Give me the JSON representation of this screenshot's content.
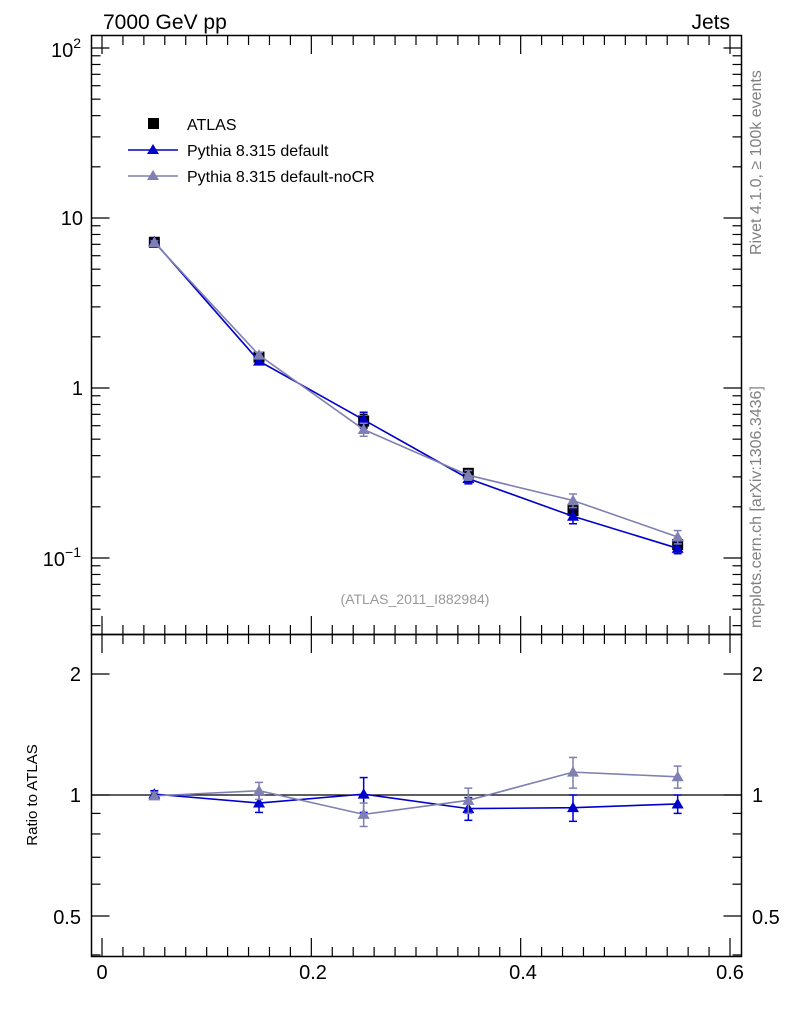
{
  "header": {
    "left": "7000 GeV pp",
    "right": "Jets"
  },
  "side_labels": {
    "rivet": "Rivet 4.1.0, ≥ 100k events",
    "source": "mcplots.cern.ch [arXiv:1306.3436]"
  },
  "analysis_label": "(ATLAS_2011_I882984)",
  "legend": [
    {
      "label": "ATLAS",
      "color": "#000000",
      "marker": "square"
    },
    {
      "label": "Pythia 8.315 default",
      "color": "#0000cc",
      "marker": "triangle"
    },
    {
      "label": "Pythia 8.315 default-noCR",
      "color": "#7f7fb2",
      "marker": "triangle"
    }
  ],
  "chart_data": [
    {
      "type": "line",
      "panel": "main",
      "yscale": "log",
      "xlim": [
        -0.01,
        0.6
      ],
      "ylim": [
        0.04,
        120
      ],
      "ytick_labels": [
        "10^-1",
        "1",
        "10",
        "10^2"
      ],
      "x": [
        0.05,
        0.15,
        0.25,
        0.35,
        0.45,
        0.55
      ],
      "series": [
        {
          "name": "ATLAS",
          "color": "#000000",
          "marker": "square",
          "values": [
            7.2,
            1.52,
            0.64,
            0.315,
            0.19,
            0.12
          ],
          "err_lo": [
            0.3,
            0.07,
            0.05,
            0.02,
            0.02,
            0.01
          ],
          "err_hi": [
            0.3,
            0.07,
            0.06,
            0.02,
            0.02,
            0.01
          ]
        },
        {
          "name": "Pythia 8.315 default",
          "color": "#0000cc",
          "marker": "triangle",
          "values": [
            7.25,
            1.44,
            0.65,
            0.293,
            0.176,
            0.114
          ],
          "err_lo": [
            0.15,
            0.06,
            0.07,
            0.02,
            0.017,
            0.008
          ],
          "err_hi": [
            0.15,
            0.06,
            0.07,
            0.02,
            0.017,
            0.008
          ]
        },
        {
          "name": "Pythia 8.315 default-noCR",
          "color": "#7f7fb2",
          "marker": "triangle",
          "values": [
            7.18,
            1.56,
            0.57,
            0.307,
            0.218,
            0.133
          ],
          "err_lo": [
            0.15,
            0.06,
            0.05,
            0.02,
            0.02,
            0.012
          ],
          "err_hi": [
            0.15,
            0.06,
            0.05,
            0.02,
            0.02,
            0.012
          ]
        }
      ]
    },
    {
      "type": "line",
      "panel": "ratio",
      "ylabel": "Ratio to ATLAS",
      "xlim": [
        -0.01,
        0.6
      ],
      "ylim": [
        0.4,
        2.35
      ],
      "yticks": [
        0.5,
        1,
        2
      ],
      "ytick_labels": [
        "0.5",
        "1",
        "2"
      ],
      "xticks": [
        0,
        0.2,
        0.4,
        0.6
      ],
      "xtick_labels": [
        "0",
        "0.2",
        "0.4",
        "0.6"
      ],
      "x": [
        0.05,
        0.15,
        0.25,
        0.35,
        0.45,
        0.55
      ],
      "series": [
        {
          "name": "Pythia 8.315 default",
          "color": "#0000cc",
          "marker": "triangle",
          "values": [
            1.005,
            0.955,
            1.005,
            0.925,
            0.93,
            0.95
          ],
          "err_lo": [
            0.02,
            0.05,
            0.1,
            0.06,
            0.07,
            0.05
          ],
          "err_hi": [
            0.02,
            0.05,
            0.1,
            0.06,
            0.07,
            0.05
          ]
        },
        {
          "name": "Pythia 8.315 default-noCR",
          "color": "#7f7fb2",
          "marker": "triangle",
          "values": [
            0.995,
            1.025,
            0.895,
            0.97,
            1.14,
            1.11
          ],
          "err_lo": [
            0.02,
            0.05,
            0.06,
            0.07,
            0.1,
            0.07
          ],
          "err_hi": [
            0.02,
            0.05,
            0.06,
            0.07,
            0.1,
            0.07
          ]
        }
      ]
    }
  ]
}
